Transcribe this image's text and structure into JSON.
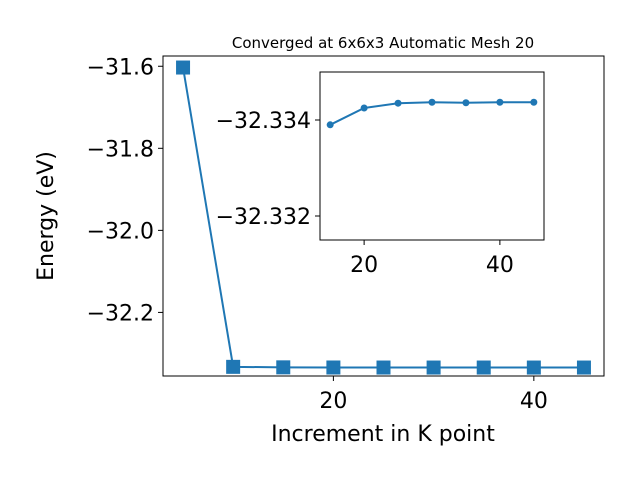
{
  "chart_data": [
    {
      "type": "line",
      "title": "Converged at 6x6x3 Automatic Mesh 20",
      "xlabel": "Increment in K point",
      "ylabel": "Energy (eV)",
      "xlim": [
        3.0,
        47.0
      ],
      "ylim": [
        -32.355,
        -31.575
      ],
      "x_ticks": [
        20,
        40
      ],
      "y_ticks": [
        -31.6,
        -31.8,
        -32.0,
        -32.2
      ],
      "grid": false,
      "marker": "square",
      "color": "#1f77b4",
      "series": [
        {
          "x": [
            5,
            10,
            15,
            20,
            25,
            30,
            35,
            40,
            45
          ],
          "values": [
            -31.6031,
            -32.3327,
            -32.3339,
            -32.33425,
            -32.33435,
            -32.33437,
            -32.33436,
            -32.33437,
            -32.33437
          ]
        }
      ]
    },
    {
      "type": "line",
      "title": "",
      "xlabel": "",
      "ylabel": "",
      "xlim": [
        13.5,
        46.5
      ],
      "ylim": [
        -32.3315,
        -32.335
      ],
      "x_ticks": [
        20,
        40
      ],
      "y_ticks": [
        -32.334,
        -32.332
      ],
      "grid": false,
      "marker": "circle",
      "color": "#1f77b4",
      "series": [
        {
          "x": [
            15,
            20,
            25,
            30,
            35,
            40,
            45
          ],
          "values": [
            -32.3339,
            -32.33425,
            -32.33435,
            -32.33437,
            -32.33436,
            -32.33437,
            -32.33437
          ]
        }
      ]
    }
  ],
  "labels": {
    "main_x_ticks": [
      "20",
      "40"
    ],
    "main_y_ticks": [
      "−31.6",
      "−31.8",
      "−32.0",
      "−32.2"
    ],
    "inset_x_ticks": [
      "20",
      "40"
    ],
    "inset_y_ticks": [
      "−32.334",
      "−32.332"
    ]
  }
}
